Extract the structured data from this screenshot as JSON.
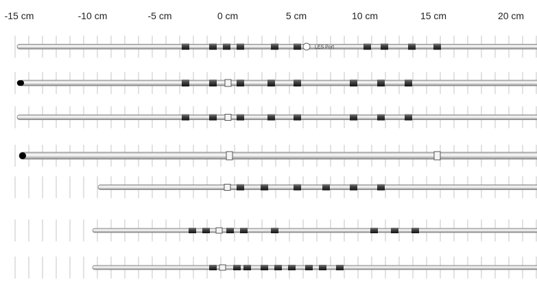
{
  "scale": {
    "labels": [
      "-15 cm",
      "-10 cm",
      "-5 cm",
      "0 cm",
      "5 cm",
      "10 cm",
      "15 cm",
      "20 cm"
    ]
  },
  "annotation": "LES Port"
}
